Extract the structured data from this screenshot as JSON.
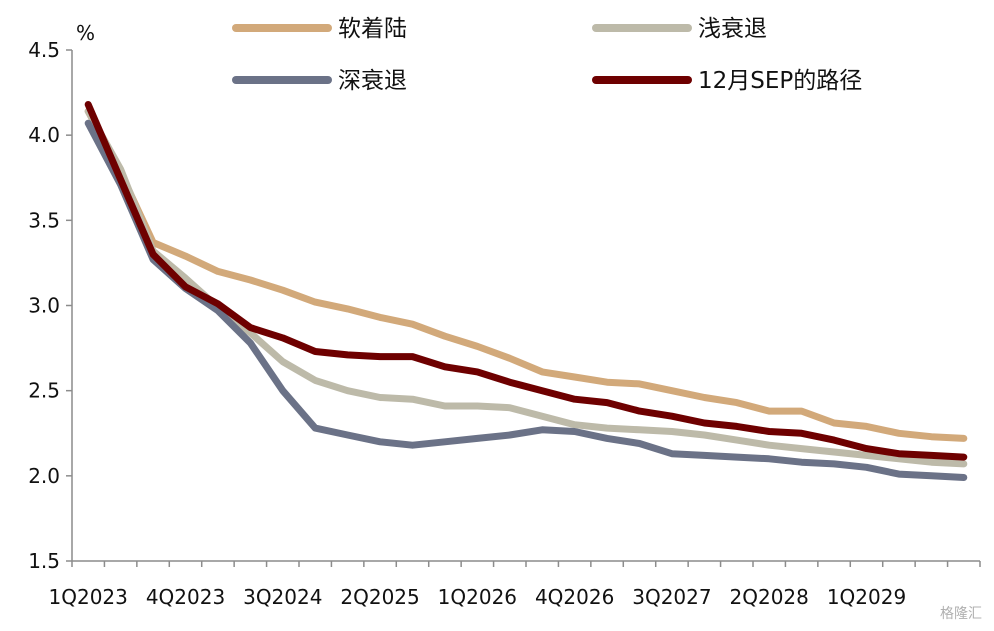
{
  "chart_data": {
    "type": "line",
    "title": "",
    "xlabel": "",
    "ylabel": "%",
    "ylim": [
      1.5,
      4.5
    ],
    "yticks": [
      "4.5",
      "4.0",
      "3.5",
      "3.0",
      "2.5",
      "2.0",
      "1.5"
    ],
    "grid": false,
    "legend_position": "top",
    "x_count": 28,
    "x": [
      "1Q2023",
      "2Q2023",
      "3Q2023",
      "4Q2023",
      "1Q2024",
      "2Q2024",
      "3Q2024",
      "4Q2024",
      "1Q2025",
      "2Q2025",
      "3Q2025",
      "4Q2025",
      "1Q2026",
      "2Q2026",
      "3Q2026",
      "4Q2026",
      "1Q2027",
      "2Q2027",
      "3Q2027",
      "4Q2027",
      "1Q2028",
      "2Q2028",
      "3Q2028",
      "4Q2028",
      "1Q2029",
      "2Q2029",
      "3Q2029",
      "4Q2029"
    ],
    "x_tick_labels": [
      "1Q2023",
      "4Q2023",
      "3Q2024",
      "2Q2025",
      "1Q2026",
      "4Q2026",
      "3Q2027",
      "2Q2028",
      "1Q2029"
    ],
    "series": [
      {
        "name": "软着陆",
        "color": "#D2A97A",
        "values": [
          4.14,
          3.78,
          3.37,
          3.29,
          3.2,
          3.15,
          3.09,
          3.02,
          2.98,
          2.93,
          2.89,
          2.82,
          2.76,
          2.69,
          2.61,
          2.58,
          2.55,
          2.54,
          2.5,
          2.46,
          2.43,
          2.38,
          2.38,
          2.31,
          2.29,
          2.25,
          2.23,
          2.22
        ]
      },
      {
        "name": "浅衰退",
        "color": "#BDBAA9",
        "values": [
          4.14,
          3.8,
          3.32,
          3.16,
          2.99,
          2.84,
          2.67,
          2.56,
          2.5,
          2.46,
          2.45,
          2.41,
          2.41,
          2.4,
          2.35,
          2.3,
          2.28,
          2.27,
          2.26,
          2.24,
          2.21,
          2.18,
          2.16,
          2.14,
          2.12,
          2.1,
          2.08,
          2.07
        ]
      },
      {
        "name": "深衰退",
        "color": "#6B7287",
        "values": [
          4.07,
          3.71,
          3.27,
          3.1,
          2.97,
          2.78,
          2.5,
          2.28,
          2.24,
          2.2,
          2.18,
          2.2,
          2.22,
          2.24,
          2.27,
          2.26,
          2.22,
          2.19,
          2.13,
          2.12,
          2.11,
          2.1,
          2.08,
          2.07,
          2.05,
          2.01,
          2.0,
          1.99
        ]
      },
      {
        "name": "12月SEP的路径",
        "color": "#6E0000",
        "values": [
          4.18,
          3.74,
          3.3,
          3.11,
          3.01,
          2.87,
          2.81,
          2.73,
          2.71,
          2.7,
          2.7,
          2.64,
          2.61,
          2.55,
          2.5,
          2.45,
          2.43,
          2.38,
          2.35,
          2.31,
          2.29,
          2.26,
          2.25,
          2.21,
          2.16,
          2.13,
          2.12,
          2.11
        ]
      }
    ]
  },
  "watermark": "格隆汇"
}
